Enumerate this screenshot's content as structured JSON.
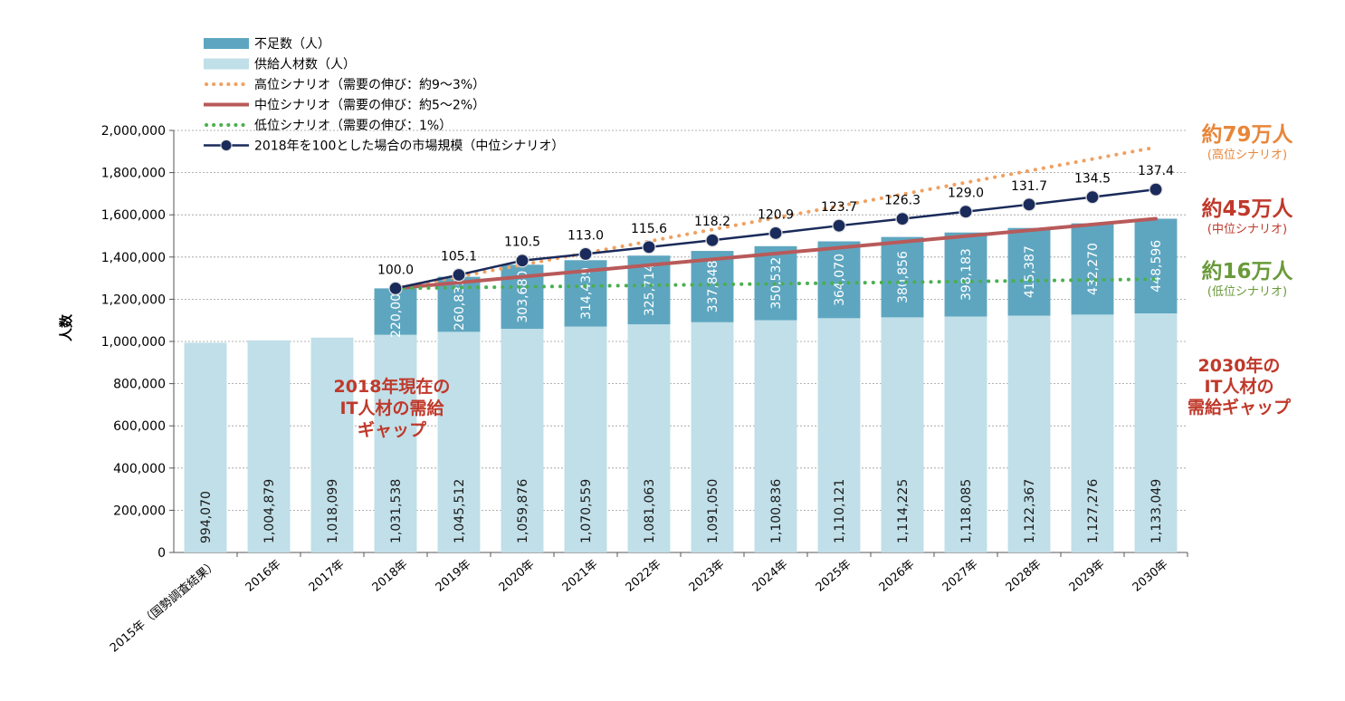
{
  "chart_data": {
    "type": "bar",
    "ylabel": "人数",
    "ylim": [
      0,
      2000000
    ],
    "yticks": [
      0,
      200000,
      400000,
      600000,
      800000,
      1000000,
      1200000,
      1400000,
      1600000,
      1800000,
      2000000
    ],
    "ytick_labels": [
      "0",
      "200,000",
      "400,000",
      "600,000",
      "800,000",
      "1,000,000",
      "1,200,000",
      "1,400,000",
      "1,600,000",
      "1,800,000",
      "2,000,000"
    ],
    "grid": true,
    "legend_position": "top-left",
    "categories": [
      "2015年（国勢調査結果）",
      "2016年",
      "2017年",
      "2018年",
      "2019年",
      "2020年",
      "2021年",
      "2022年",
      "2023年",
      "2024年",
      "2025年",
      "2026年",
      "2027年",
      "2028年",
      "2029年",
      "2030年"
    ],
    "supply": {
      "name": "供給人材数（人）",
      "color": "#c0dfe8",
      "values": [
        994070,
        1004879,
        1018099,
        1031538,
        1045512,
        1059876,
        1070559,
        1081063,
        1091050,
        1100836,
        1110121,
        1114225,
        1118085,
        1122367,
        1127276,
        1133049
      ],
      "labels": [
        "994,070",
        "1,004,879",
        "1,018,099",
        "1,031,538",
        "1,045,512",
        "1,059,876",
        "1,070,559",
        "1,081,063",
        "1,091,050",
        "1,100,836",
        "1,110,121",
        "1,114,225",
        "1,118,085",
        "1,122,367",
        "1,127,276",
        "1,133,049"
      ]
    },
    "shortage": {
      "name": "不足数（人）",
      "color": "#5ea6c0",
      "values": [
        null,
        null,
        null,
        220000,
        260835,
        303680,
        314439,
        325714,
        337848,
        350532,
        364070,
        380856,
        398183,
        415387,
        432270,
        448596
      ],
      "labels": [
        "",
        "",
        "",
        "220,000",
        "260,835",
        "303,680",
        "314,439",
        "325,714",
        "337,848",
        "350,532",
        "364,070",
        "380,856",
        "398,183",
        "415,387",
        "432,270",
        "448,596"
      ]
    },
    "scenarios": [
      {
        "name": "高位シナリオ（需要の伸び：約9～3%）",
        "color": "#f0a060",
        "style": "dotted",
        "start": 1251538,
        "end": 1920000
      },
      {
        "name": "中位シナリオ（需要の伸び：約5～2%）",
        "color": "#b85a5a",
        "style": "solid",
        "start": 1251538,
        "end": 1581645
      },
      {
        "name": "低位シナリオ（需要の伸び：1%）",
        "color": "#4caf50",
        "style": "dotted",
        "start": 1251538,
        "end": 1295000
      }
    ],
    "market_size": {
      "name": "2018年を100とした場合の市場規模（中位シナリオ）",
      "color": "#1a2a5a",
      "values": [
        null,
        null,
        null,
        100.0,
        105.1,
        110.5,
        113.0,
        115.6,
        118.2,
        120.9,
        123.7,
        126.3,
        129.0,
        131.7,
        134.5,
        137.4
      ],
      "labels": [
        "",
        "",
        "",
        "100.0",
        "105.1",
        "110.5",
        "113.0",
        "115.6",
        "118.2",
        "120.9",
        "123.7",
        "126.3",
        "129.0",
        "131.7",
        "134.5",
        "137.4"
      ]
    },
    "annotations": {
      "gap2018": [
        "2018年現在の",
        "IT人材の需給",
        "ギャップ"
      ],
      "gap2030": [
        "2030年の",
        "IT人材の",
        "需給ギャップ"
      ],
      "gap_color": "#c0392b",
      "high": {
        "value": "約79万人",
        "scenario": "(高位シナリオ)",
        "color": "#e8863a"
      },
      "mid": {
        "value": "約45万人",
        "scenario": "(中位シナリオ)",
        "color": "#c0392b"
      },
      "low": {
        "value": "約16万人",
        "scenario": "(低位シナリオ)",
        "color": "#6a9a3a"
      }
    }
  }
}
